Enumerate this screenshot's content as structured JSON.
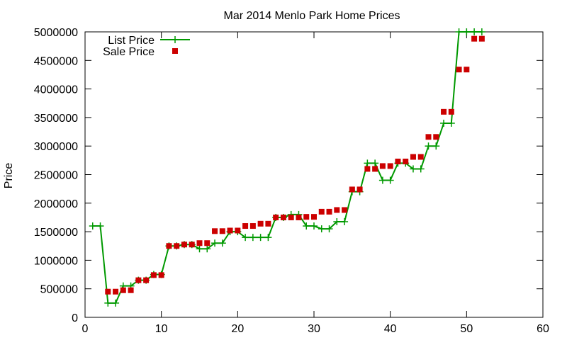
{
  "chart_data": {
    "type": "line",
    "title": "Mar 2014 Menlo Park Home Prices",
    "xlabel": "",
    "ylabel": "Price",
    "xlim": [
      0,
      60
    ],
    "ylim": [
      0,
      5000000
    ],
    "x_ticks": [
      0,
      10,
      20,
      30,
      40,
      50,
      60
    ],
    "y_ticks": [
      0,
      500000,
      1000000,
      1500000,
      2000000,
      2500000,
      3000000,
      3500000,
      4000000,
      4500000,
      5000000
    ],
    "grid": false,
    "legend_position": "top-left",
    "colors": {
      "list_price": "#009900",
      "sale_price": "#cc0000"
    },
    "series": [
      {
        "name": "List Price",
        "style": "linespoints",
        "points": [
          [
            1,
            1600000
          ],
          [
            2,
            1600000
          ],
          [
            3,
            250000
          ],
          [
            4,
            250000
          ],
          [
            5,
            550000
          ],
          [
            6,
            550000
          ],
          [
            7,
            650000
          ],
          [
            8,
            650000
          ],
          [
            9,
            750000
          ],
          [
            10,
            750000
          ],
          [
            11,
            1250000
          ],
          [
            12,
            1250000
          ],
          [
            13,
            1275000
          ],
          [
            14,
            1275000
          ],
          [
            15,
            1200000
          ],
          [
            16,
            1200000
          ],
          [
            17,
            1300000
          ],
          [
            18,
            1300000
          ],
          [
            19,
            1500000
          ],
          [
            20,
            1500000
          ],
          [
            21,
            1400000
          ],
          [
            22,
            1400000
          ],
          [
            23,
            1400000
          ],
          [
            24,
            1400000
          ],
          [
            25,
            1750000
          ],
          [
            26,
            1750000
          ],
          [
            27,
            1800000
          ],
          [
            28,
            1800000
          ],
          [
            29,
            1600000
          ],
          [
            30,
            1600000
          ],
          [
            31,
            1550000
          ],
          [
            32,
            1550000
          ],
          [
            33,
            1675000
          ],
          [
            34,
            1675000
          ],
          [
            35,
            2200000
          ],
          [
            36,
            2200000
          ],
          [
            37,
            2700000
          ],
          [
            38,
            2700000
          ],
          [
            39,
            2400000
          ],
          [
            40,
            2400000
          ],
          [
            41,
            2700000
          ],
          [
            42,
            2700000
          ],
          [
            43,
            2600000
          ],
          [
            44,
            2600000
          ],
          [
            45,
            3000000
          ],
          [
            46,
            3000000
          ],
          [
            47,
            3400000
          ],
          [
            48,
            3400000
          ],
          [
            49,
            5000000
          ],
          [
            50,
            5000000
          ],
          [
            51,
            5000000
          ],
          [
            52,
            5000000
          ]
        ]
      },
      {
        "name": "Sale Price",
        "style": "points",
        "points": [
          [
            3,
            450000
          ],
          [
            4,
            450000
          ],
          [
            5,
            475000
          ],
          [
            6,
            475000
          ],
          [
            7,
            650000
          ],
          [
            8,
            650000
          ],
          [
            9,
            740000
          ],
          [
            10,
            740000
          ],
          [
            11,
            1250000
          ],
          [
            12,
            1250000
          ],
          [
            13,
            1275000
          ],
          [
            14,
            1275000
          ],
          [
            15,
            1300000
          ],
          [
            16,
            1300000
          ],
          [
            17,
            1510000
          ],
          [
            18,
            1510000
          ],
          [
            19,
            1520000
          ],
          [
            20,
            1520000
          ],
          [
            21,
            1600000
          ],
          [
            22,
            1600000
          ],
          [
            23,
            1640000
          ],
          [
            24,
            1640000
          ],
          [
            25,
            1750000
          ],
          [
            26,
            1750000
          ],
          [
            27,
            1750000
          ],
          [
            28,
            1750000
          ],
          [
            29,
            1760000
          ],
          [
            30,
            1760000
          ],
          [
            31,
            1850000
          ],
          [
            32,
            1850000
          ],
          [
            33,
            1880000
          ],
          [
            34,
            1880000
          ],
          [
            35,
            2240000
          ],
          [
            36,
            2240000
          ],
          [
            37,
            2600000
          ],
          [
            38,
            2600000
          ],
          [
            39,
            2650000
          ],
          [
            40,
            2650000
          ],
          [
            41,
            2730000
          ],
          [
            42,
            2730000
          ],
          [
            43,
            2810000
          ],
          [
            44,
            2810000
          ],
          [
            45,
            3160000
          ],
          [
            46,
            3160000
          ],
          [
            47,
            3600000
          ],
          [
            48,
            3600000
          ],
          [
            49,
            4340000
          ],
          [
            50,
            4340000
          ],
          [
            51,
            4880000
          ],
          [
            52,
            4880000
          ]
        ]
      }
    ]
  }
}
